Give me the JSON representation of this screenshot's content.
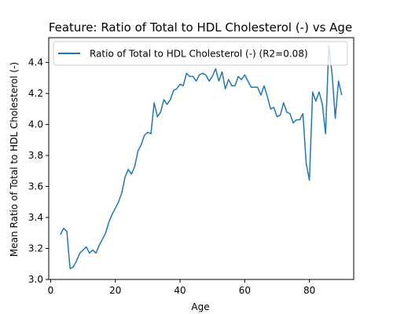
{
  "chart_data": {
    "type": "line",
    "title": "Feature: Ratio of Total to HDL Cholesterol (-) vs Age",
    "xlabel": "Age",
    "ylabel": "Mean Ratio of Total to HDL Cholesterol (-)",
    "xlim": [
      -0.6,
      93.7
    ],
    "ylim": [
      3.0,
      4.56
    ],
    "xticks": [
      0,
      20,
      40,
      60,
      80
    ],
    "yticks": [
      3.0,
      3.2,
      3.4,
      3.6,
      3.8,
      4.0,
      4.2,
      4.4
    ],
    "ytick_labels": [
      "3.0",
      "3.2",
      "3.4",
      "3.6",
      "3.8",
      "4.0",
      "4.2",
      "4.4"
    ],
    "grid": false,
    "legend_position": "top",
    "series": [
      {
        "name": "Ratio of Total to HDL Cholesterol (-) (R2=0.08)",
        "color": "#1f77b4",
        "x": [
          3,
          4,
          5,
          6,
          7,
          8,
          9,
          10,
          11,
          12,
          13,
          14,
          15,
          16,
          17,
          18,
          19,
          20,
          21,
          22,
          23,
          24,
          25,
          26,
          27,
          28,
          29,
          30,
          31,
          32,
          33,
          34,
          35,
          36,
          37,
          38,
          39,
          40,
          41,
          42,
          43,
          44,
          45,
          46,
          47,
          48,
          49,
          50,
          51,
          52,
          53,
          54,
          55,
          56,
          57,
          58,
          59,
          60,
          61,
          62,
          63,
          64,
          65,
          66,
          67,
          68,
          69,
          70,
          71,
          72,
          73,
          74,
          75,
          76,
          77,
          78,
          79,
          80,
          81,
          82,
          83,
          84,
          85,
          86,
          87,
          88,
          89,
          90
        ],
        "y": [
          3.29,
          3.33,
          3.31,
          3.07,
          3.08,
          3.12,
          3.17,
          3.19,
          3.21,
          3.17,
          3.19,
          3.17,
          3.22,
          3.26,
          3.3,
          3.37,
          3.42,
          3.46,
          3.5,
          3.56,
          3.66,
          3.71,
          3.68,
          3.73,
          3.83,
          3.87,
          3.93,
          3.95,
          3.94,
          4.14,
          4.05,
          4.08,
          4.16,
          4.13,
          4.16,
          4.22,
          4.23,
          4.26,
          4.25,
          4.33,
          4.31,
          4.31,
          4.28,
          4.32,
          4.33,
          4.32,
          4.28,
          4.31,
          4.36,
          4.28,
          4.34,
          4.23,
          4.29,
          4.25,
          4.25,
          4.31,
          4.29,
          4.32,
          4.28,
          4.24,
          4.24,
          4.24,
          4.19,
          4.25,
          4.18,
          4.1,
          4.11,
          4.05,
          4.06,
          4.14,
          4.08,
          4.07,
          4.01,
          4.03,
          4.03,
          4.07,
          3.75,
          3.64,
          4.21,
          4.15,
          4.21,
          4.13,
          3.94,
          4.51,
          4.33,
          4.04,
          4.28,
          4.19
        ]
      }
    ]
  }
}
